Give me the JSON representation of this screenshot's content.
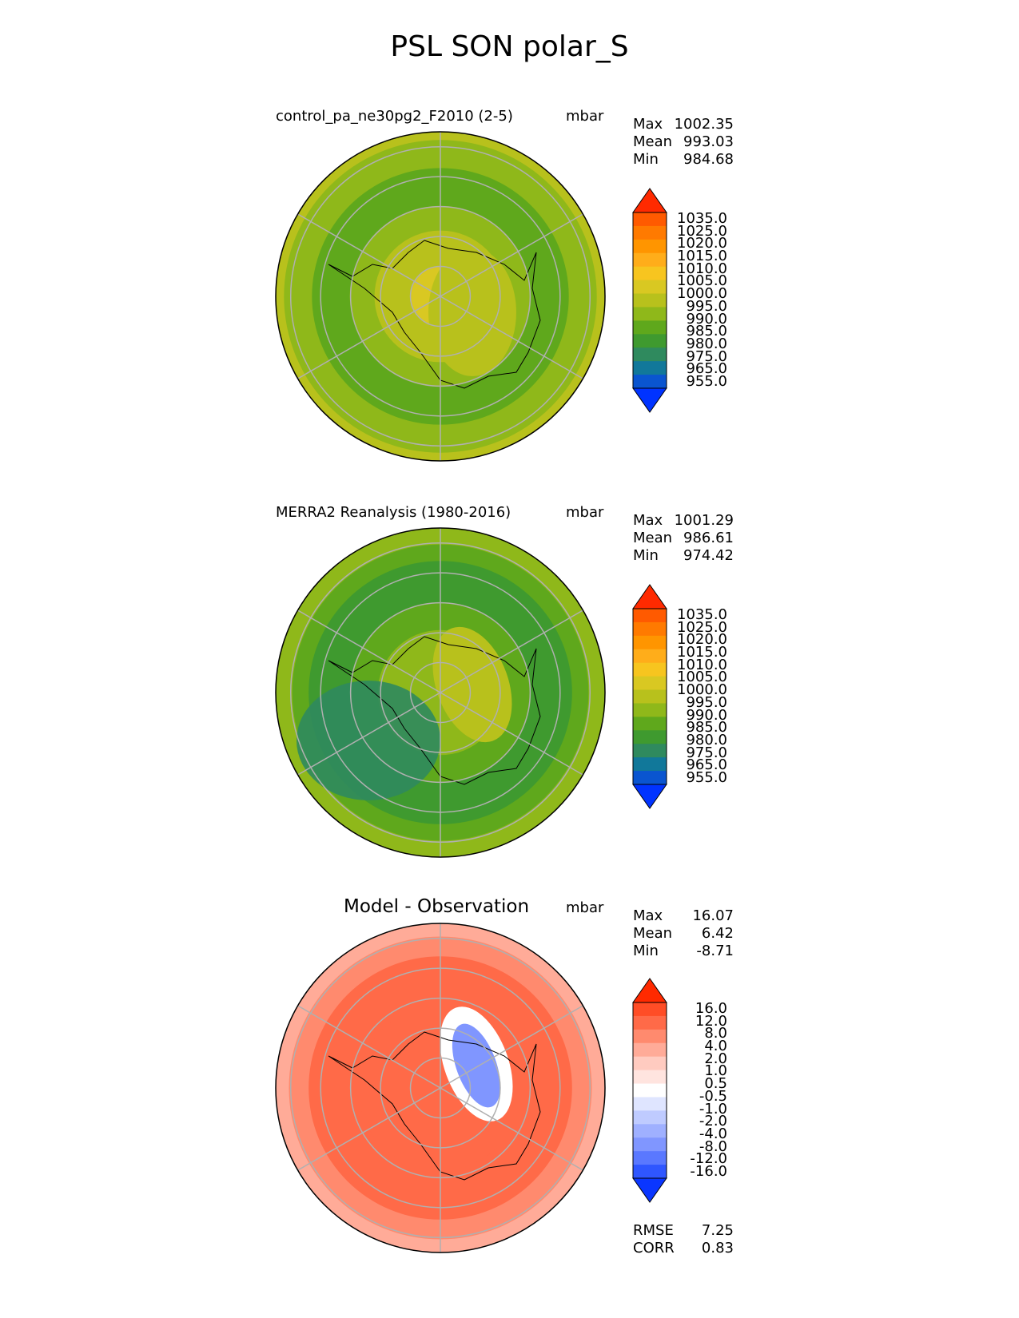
{
  "figure_title": "PSL SON polar_S",
  "panels": [
    {
      "title": "control_pa_ne30pg2_F2010 (2-5)",
      "units": "mbar",
      "stats": [
        {
          "label": "Max",
          "value": "1002.35"
        },
        {
          "label": "Mean",
          "value": "993.03"
        },
        {
          "label": "Min",
          "value": "984.68"
        }
      ],
      "colorbar_labels": [
        "1035.0",
        "1025.0",
        "1020.0",
        "1015.0",
        "1010.0",
        "1005.0",
        "1000.0",
        "995.0",
        "990.0",
        "985.0",
        "980.0",
        "975.0",
        "965.0",
        "955.0"
      ]
    },
    {
      "title": "MERRA2 Reanalysis (1980-2016)",
      "units": "mbar",
      "stats": [
        {
          "label": "Max",
          "value": "1001.29"
        },
        {
          "label": "Mean",
          "value": "986.61"
        },
        {
          "label": "Min",
          "value": "974.42"
        }
      ],
      "colorbar_labels": [
        "1035.0",
        "1025.0",
        "1020.0",
        "1015.0",
        "1010.0",
        "1005.0",
        "1000.0",
        "995.0",
        "990.0",
        "985.0",
        "980.0",
        "975.0",
        "965.0",
        "955.0"
      ]
    },
    {
      "title": "Model - Observation",
      "units": "mbar",
      "stats": [
        {
          "label": "Max",
          "value": "16.07"
        },
        {
          "label": "Mean",
          "value": "6.42"
        },
        {
          "label": "Min",
          "value": "-8.71"
        }
      ],
      "colorbar_labels": [
        "16.0",
        "12.0",
        "8.0",
        "4.0",
        "2.0",
        "1.0",
        "0.5",
        "-0.5",
        "-1.0",
        "-2.0",
        "-4.0",
        "-8.0",
        "-12.0",
        "-16.0"
      ],
      "metrics": [
        {
          "label": "RMSE",
          "value": "7.25"
        },
        {
          "label": "CORR",
          "value": "0.83"
        }
      ]
    }
  ],
  "colors": {
    "psl_scale": [
      "#ff2a00",
      "#ff5a00",
      "#ff7a00",
      "#ff9500",
      "#ffad1a",
      "#f7c51f",
      "#d9c822",
      "#b8c11c",
      "#8fb81a",
      "#5fa81c",
      "#3f9a2f",
      "#2f8a5e",
      "#11789a",
      "#0a55d0",
      "#0033ff"
    ],
    "diff_scale": [
      "#ff2a00",
      "#ff4d26",
      "#ff6a48",
      "#ff8a6e",
      "#ffab98",
      "#ffcbc0",
      "#ffe4df",
      "#ffffff",
      "#dfe5ff",
      "#bfcbff",
      "#9fb0ff",
      "#8096ff",
      "#5a78ff",
      "#2f56ff",
      "#0a36ff"
    ]
  },
  "chart_data": [
    {
      "type": "heatmap",
      "projection": "south polar stereographic",
      "title": "control_pa_ne30pg2_F2010 (2-5)",
      "units": "mbar",
      "max": 1002.35,
      "mean": 993.03,
      "min": 984.68,
      "levels": [
        955,
        965,
        975,
        980,
        985,
        990,
        995,
        1000,
        1005,
        1010,
        1015,
        1020,
        1025,
        1035
      ],
      "colorbar_extend": "both"
    },
    {
      "type": "heatmap",
      "projection": "south polar stereographic",
      "title": "MERRA2 Reanalysis (1980-2016)",
      "units": "mbar",
      "max": 1001.29,
      "mean": 986.61,
      "min": 974.42,
      "levels": [
        955,
        965,
        975,
        980,
        985,
        990,
        995,
        1000,
        1005,
        1010,
        1015,
        1020,
        1025,
        1035
      ],
      "colorbar_extend": "both"
    },
    {
      "type": "heatmap",
      "projection": "south polar stereographic",
      "title": "Model - Observation",
      "units": "mbar",
      "max": 16.07,
      "mean": 6.42,
      "min": -8.71,
      "rmse": 7.25,
      "corr": 0.83,
      "levels": [
        -16,
        -12,
        -8,
        -4,
        -2,
        -1,
        -0.5,
        0.5,
        1,
        2,
        4,
        8,
        12,
        16
      ],
      "colorbar_extend": "both"
    }
  ]
}
